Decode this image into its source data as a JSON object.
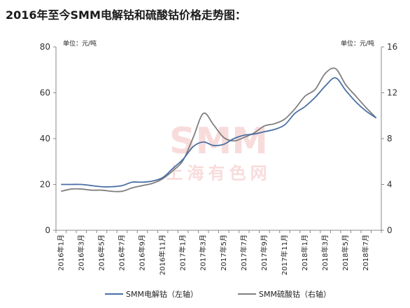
{
  "chart_data": {
    "type": "line",
    "title": "2016年至今SMM电解钴和硫酸钴价格走势图：",
    "left_unit": "单位：元/吨",
    "right_unit": "单位：元/吨",
    "watermark": "SMM",
    "watermark_sub": "上海有色网",
    "x": [
      "2016年1月",
      "2016年2月",
      "2016年3月",
      "2016年4月",
      "2016年5月",
      "2016年6月",
      "2016年7月",
      "2016年8月",
      "2016年9月",
      "2016年10月",
      "2016年11月",
      "2016年12月",
      "2017年1月",
      "2017年2月",
      "2017年3月",
      "2017年4月",
      "2017年5月",
      "2017年6月",
      "2017年7月",
      "2017年8月",
      "2017年9月",
      "2017年10月",
      "2017年11月",
      "2017年12月",
      "2018年1月",
      "2018年2月",
      "2018年3月",
      "2018年4月",
      "2018年5月",
      "2018年6月",
      "2018年7月",
      "2018年8月"
    ],
    "xticks": [
      "2016年1月",
      "2016年3月",
      "2016年5月",
      "2016年7月",
      "2016年9月",
      "2016年11月",
      "2017年1月",
      "2017年3月",
      "2017年5月",
      "2017年7月",
      "2017年9月",
      "2017年11月",
      "2018年1月",
      "2018年3月",
      "2018年5月",
      "2018年7月"
    ],
    "left_axis": {
      "ylim": [
        0,
        80
      ],
      "ticks": [
        "0",
        "20",
        "40",
        "60",
        "80"
      ]
    },
    "right_axis": {
      "ylim": [
        0,
        16
      ],
      "ticks": [
        "0",
        "4",
        "8",
        "12",
        "16"
      ]
    },
    "series": [
      {
        "name": "SMM电解钴（左轴）",
        "axis": "left",
        "color": "#4a6fa5",
        "values": [
          20,
          20,
          20,
          19.5,
          19,
          19,
          19.5,
          21,
          21,
          21.5,
          23,
          27,
          31,
          36.5,
          38.5,
          37,
          37.5,
          40,
          41.5,
          42,
          43,
          44,
          46,
          51,
          54,
          58,
          63,
          66.5,
          61,
          56,
          52,
          49
        ]
      },
      {
        "name": "SMM硫酸钴（右轴）",
        "axis": "right",
        "color": "#7f7f7f",
        "values": [
          3.4,
          3.6,
          3.6,
          3.5,
          3.5,
          3.4,
          3.4,
          3.7,
          3.9,
          4.1,
          4.5,
          5.2,
          6.1,
          8.1,
          10.2,
          9.2,
          8.1,
          7.8,
          8.1,
          8.5,
          9.1,
          9.3,
          9.7,
          10.6,
          11.7,
          12.3,
          13.7,
          14.1,
          12.7,
          11.7,
          10.7,
          9.8
        ]
      }
    ],
    "legend": {
      "position": "bottom"
    }
  }
}
